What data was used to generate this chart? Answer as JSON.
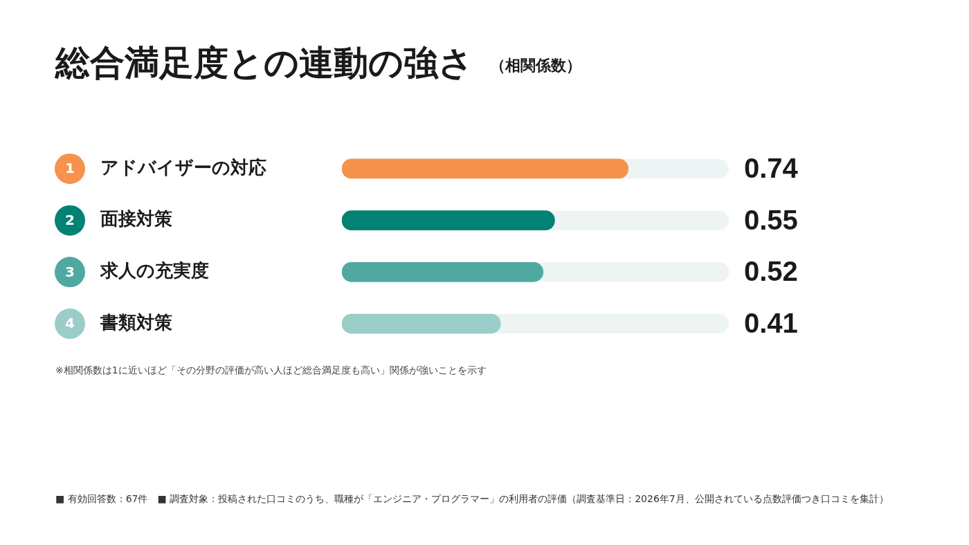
{
  "chart_data": {
    "type": "bar",
    "orientation": "horizontal",
    "title": "総合満足度との連動の強さ",
    "subtitle": "（相関係数）",
    "categories": [
      "アドバイザーの対応",
      "面接対策",
      "求人の充実度",
      "書類対策"
    ],
    "values": [
      0.74,
      0.55,
      0.52,
      0.41
    ],
    "colors": [
      "#f5924b",
      "#018272",
      "#4fa9a0",
      "#9bcdc8"
    ],
    "xlim": [
      0,
      1
    ],
    "tick_labels": "y",
    "data_labels": true,
    "annotations": [
      "1",
      "2",
      "3",
      "4",
      "※相関係数は1に近いほど「その分野の評価が高い人ほど総合満足度も高い」関係が強いことを示す",
      "■ 有効回答数：67件　■ 調査対象：投稿された口コミのうち、職種が「エンジニア・プログラマー」の利用者の評価（調査基準日：2026年7月、公開されている点数評価つき口コミを集計）"
    ]
  }
}
